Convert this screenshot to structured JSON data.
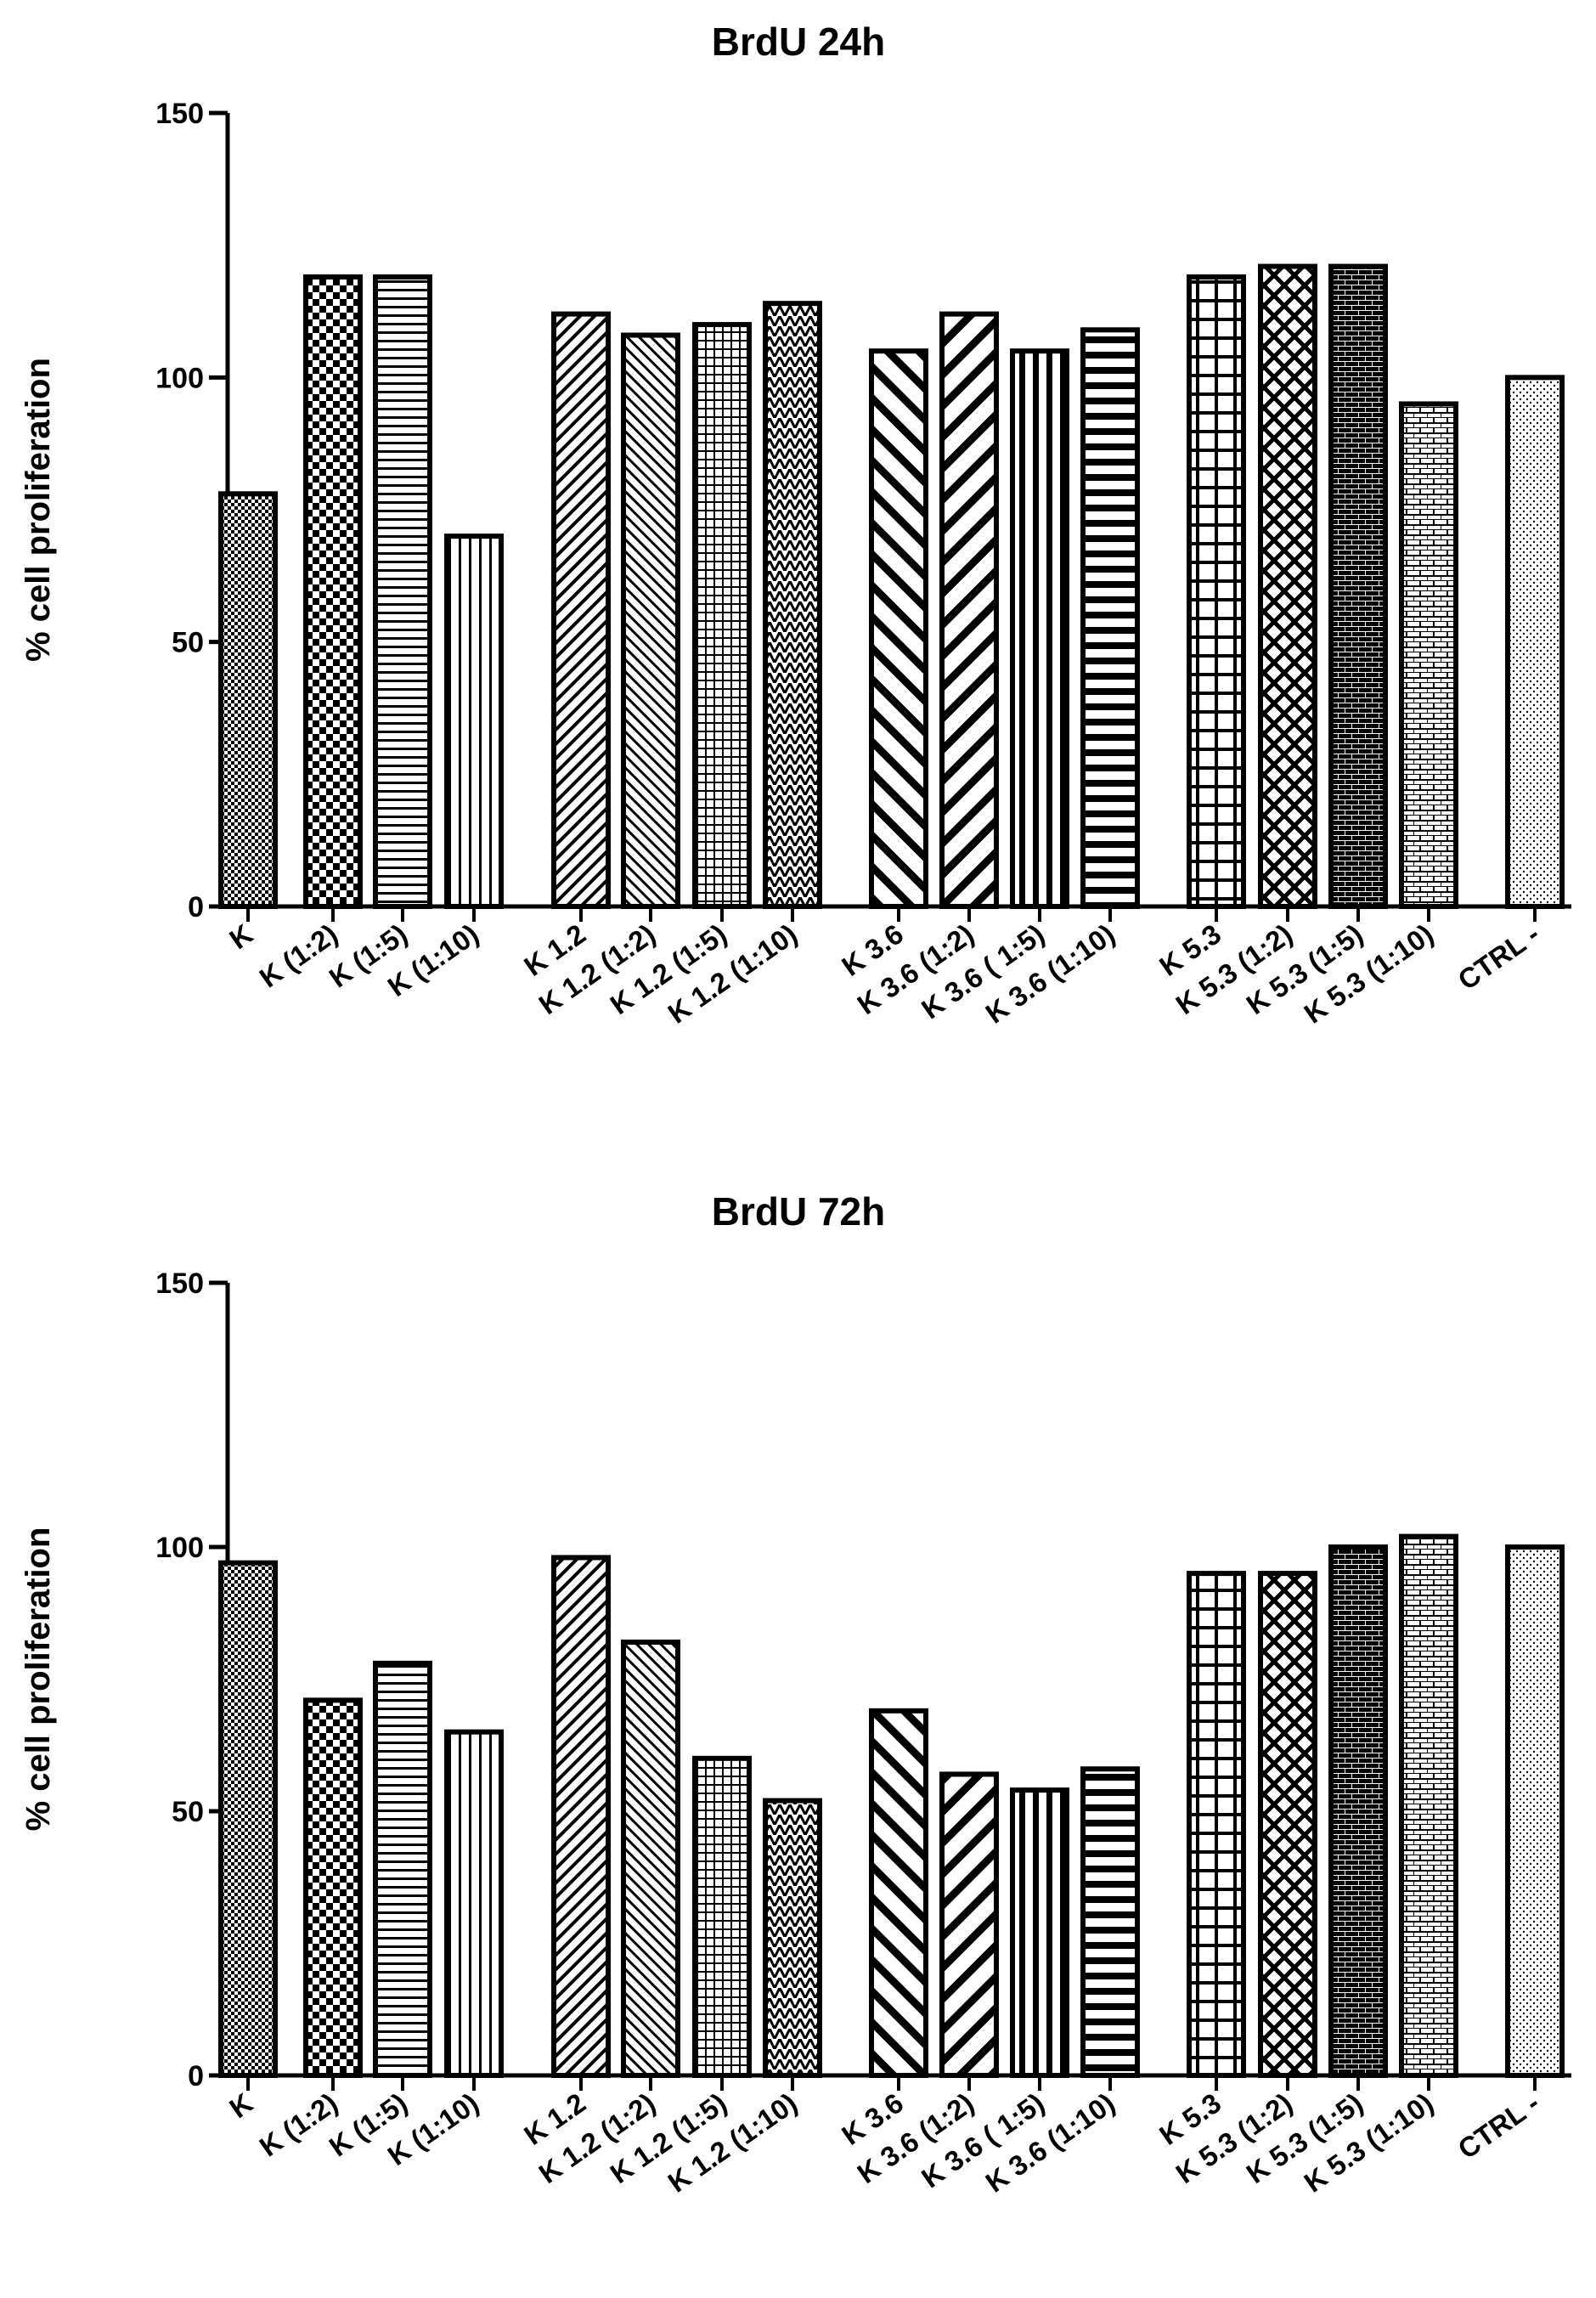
{
  "chart_data": [
    {
      "type": "bar",
      "title": "BrdU 24h",
      "xlabel": "",
      "ylabel": "% cell proliferation",
      "ylim": [
        0,
        150
      ],
      "yticks": [
        0,
        50,
        100,
        150
      ],
      "categories": [
        "K",
        "K (1:2)",
        "K (1:5)",
        "K (1:10)",
        "K 1.2",
        "K 1.2  (1:2)",
        "K 1.2  (1:5)",
        "K 1.2  (1:10)",
        "K 3.6",
        "K 3.6  (1:2)",
        "K 3.6  ( 1:5)",
        "K 3.6  (1:10)",
        "K 5.3",
        "K 5.3  (1:2)",
        "K 5.3  (1:5)",
        "K 5.3  (1:10)",
        "CTRL -"
      ],
      "values": [
        78,
        119,
        119,
        70,
        112,
        108,
        110,
        114,
        105,
        112,
        105,
        109,
        119,
        121,
        121,
        95,
        100
      ]
    },
    {
      "type": "bar",
      "title": "BrdU 72h",
      "xlabel": "",
      "ylabel": "% cell proliferation",
      "ylim": [
        0,
        150
      ],
      "yticks": [
        0,
        50,
        100,
        150
      ],
      "categories": [
        "K",
        "K (1:2)",
        "K (1:5)",
        "K (1:10)",
        "K 1.2",
        "K 1.2  (1:2)",
        "K 1.2  (1:5)",
        "K 1.2  (1:10)",
        "K 3.6",
        "K 3.6  (1:2)",
        "K 3.6  ( 1:5)",
        "K 3.6  (1:10)",
        "K 5.3",
        "K 5.3  (1:2)",
        "K 5.3  (1:5)",
        "K 5.3  (1:10)",
        "CTRL -"
      ],
      "values": [
        97,
        71,
        78,
        65,
        98,
        82,
        60,
        52,
        69,
        57,
        54,
        58,
        95,
        95,
        100,
        102,
        100
      ]
    }
  ],
  "colors": {
    "ink": "#000000",
    "background": "#ffffff"
  }
}
